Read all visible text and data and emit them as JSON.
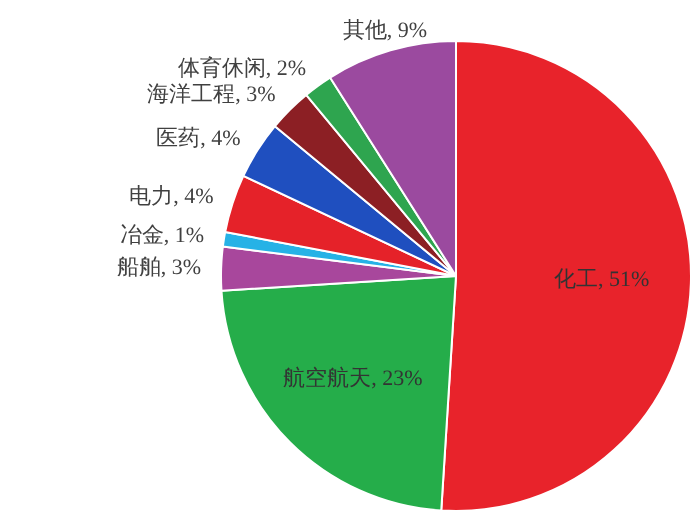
{
  "chart_data": {
    "type": "pie",
    "categories": [
      "化工",
      "航空航天",
      "船舶",
      "冶金",
      "电力",
      "医药",
      "海洋工程",
      "体育休闲",
      "其他"
    ],
    "values": [
      51,
      23,
      3,
      1,
      4,
      4,
      3,
      2,
      9
    ],
    "value_labels": [
      "51%",
      "23%",
      "3%",
      "1%",
      "4%",
      "4%",
      "3%",
      "2%",
      "9%"
    ],
    "colors": [
      "#e8232b",
      "#25ad4a",
      "#a8479c",
      "#26b2e6",
      "#e52229",
      "#1f4fbf",
      "#8c1f24",
      "#2ea54f",
      "#9b4a9f"
    ],
    "legend": false
  }
}
